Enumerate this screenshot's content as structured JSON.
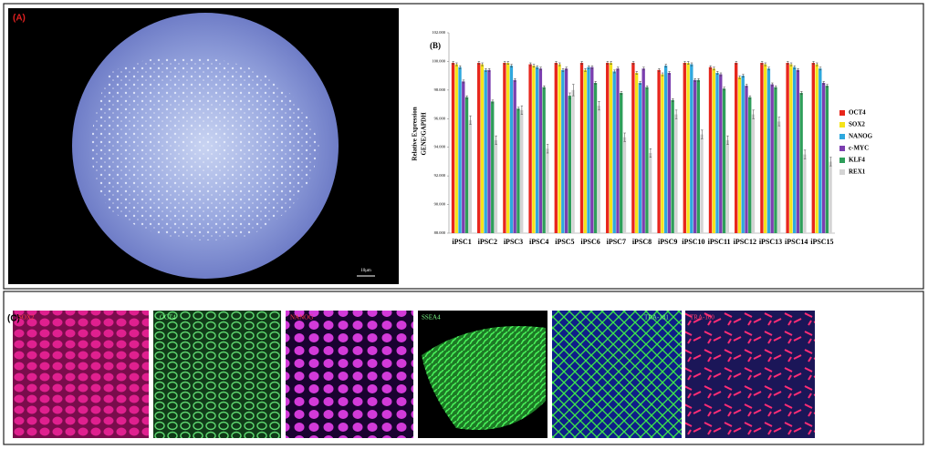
{
  "panel_labels": {
    "a": "(A)",
    "c": "(C)"
  },
  "scale_bar": "10μm",
  "stain_labels": [
    "SOX2",
    "OCT4",
    "NANOG",
    "SSEA4",
    "TRA-181",
    "TRA-160"
  ],
  "chart_data": {
    "type": "bar",
    "title": "(B)",
    "y_label": [
      "Relative Expression",
      "GENE/GAPDH"
    ],
    "categories": [
      "iPSC1",
      "iPSC2",
      "iPSC3",
      "iPSC4",
      "iPSC5",
      "iPSC6",
      "iPSC7",
      "iPSC8",
      "iPSC9",
      "iPSC10",
      "iPSC11",
      "iPSC12",
      "iPSC13",
      "iPSC14",
      "iPSC15"
    ],
    "series": [
      {
        "name": "OCT4",
        "color": "#e8261c",
        "values": [
          99.9,
          99.9,
          99.9,
          99.8,
          99.9,
          99.9,
          99.9,
          99.9,
          99.4,
          99.9,
          99.6,
          99.9,
          99.9,
          99.9,
          99.9
        ],
        "errors": [
          0.1,
          0.1,
          0.1,
          0.1,
          0.1,
          0.1,
          0.1,
          0.1,
          0.1,
          0.1,
          0.1,
          0.1,
          0.1,
          0.1,
          0.1
        ]
      },
      {
        "name": "SOX2",
        "color": "#f5e31a",
        "values": [
          99.8,
          99.8,
          99.9,
          99.7,
          99.8,
          99.4,
          99.9,
          99.2,
          99.1,
          99.9,
          99.5,
          98.9,
          99.8,
          99.8,
          99.8
        ],
        "errors": [
          0.1,
          0.1,
          0.1,
          0.1,
          0.1,
          0.1,
          0.1,
          0.1,
          0.1,
          0.1,
          0.1,
          0.1,
          0.1,
          0.1,
          0.1
        ]
      },
      {
        "name": "NANOG",
        "color": "#2ea8de",
        "values": [
          99.6,
          99.4,
          99.7,
          99.6,
          99.4,
          99.6,
          99.3,
          98.5,
          99.7,
          99.8,
          99.2,
          99.0,
          99.5,
          99.6,
          99.5
        ],
        "errors": [
          0.1,
          0.1,
          0.1,
          0.1,
          0.1,
          0.1,
          0.1,
          0.1,
          0.1,
          0.1,
          0.1,
          0.1,
          0.1,
          0.1,
          0.1
        ]
      },
      {
        "name": "c-MYC",
        "color": "#7b3fb0",
        "values": [
          98.6,
          99.4,
          98.7,
          99.5,
          99.5,
          99.6,
          99.5,
          99.5,
          99.2,
          98.7,
          99.1,
          98.3,
          98.4,
          99.4,
          98.5
        ],
        "errors": [
          0.1,
          0.1,
          0.1,
          0.1,
          0.1,
          0.1,
          0.1,
          0.1,
          0.1,
          0.1,
          0.1,
          0.1,
          0.1,
          0.1,
          0.1
        ]
      },
      {
        "name": "KLF4",
        "color": "#2e9e5a",
        "values": [
          97.5,
          97.2,
          96.7,
          98.2,
          97.6,
          98.5,
          97.8,
          98.2,
          97.3,
          98.7,
          98.1,
          97.5,
          98.2,
          97.8,
          98.3
        ],
        "errors": [
          0.1,
          0.1,
          0.1,
          0.1,
          0.2,
          0.1,
          0.1,
          0.1,
          0.1,
          0.1,
          0.1,
          0.1,
          0.1,
          0.1,
          0.1
        ]
      },
      {
        "name": "REX1",
        "color": "#d4d4d4",
        "values": [
          95.9,
          94.5,
          96.6,
          93.9,
          98.0,
          96.9,
          94.7,
          93.6,
          96.3,
          94.9,
          94.5,
          96.3,
          95.8,
          93.5,
          93.0
        ],
        "errors": [
          0.3,
          0.3,
          0.3,
          0.3,
          0.4,
          0.3,
          0.3,
          0.3,
          0.3,
          0.3,
          0.3,
          0.3,
          0.3,
          0.3,
          0.3
        ]
      }
    ],
    "ylim": [
      88,
      102
    ],
    "yticks": [
      {
        "value": 88,
        "label": "88.000"
      },
      {
        "value": 90,
        "label": "90.000"
      },
      {
        "value": 92,
        "label": "92.000"
      },
      {
        "value": 94,
        "label": "94.000"
      },
      {
        "value": 96,
        "label": "96.000"
      },
      {
        "value": 98,
        "label": "98.000"
      },
      {
        "value": 100,
        "label": "100.000"
      },
      {
        "value": 102,
        "label": "102.000"
      }
    ],
    "legend": "right"
  }
}
